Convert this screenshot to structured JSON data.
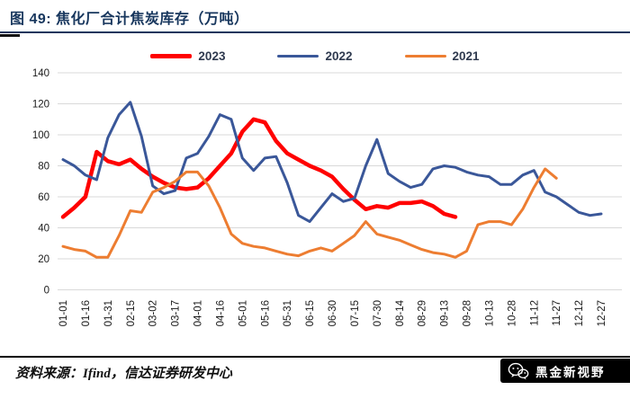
{
  "header": {
    "title": "图 49:  焦化厂合计焦炭库存（万吨）"
  },
  "legend": [
    {
      "label": "2023",
      "color": "#FF0000",
      "thick": true
    },
    {
      "label": "2022",
      "color": "#3A5799",
      "thick": false
    },
    {
      "label": "2021",
      "color": "#ED7D31",
      "thick": false
    }
  ],
  "chart_data": {
    "type": "line",
    "title": "焦化厂合计焦炭库存（万吨）",
    "ylabel": "",
    "xlabel": "",
    "ylim": [
      0,
      140
    ],
    "y_ticks": [
      0,
      20,
      40,
      60,
      80,
      100,
      120,
      140
    ],
    "grid": "horizontal",
    "legend_position": "top",
    "points_per_tick": 2,
    "x_tick_labels": [
      "01-01",
      "01-16",
      "01-31",
      "02-15",
      "03-02",
      "03-17",
      "04-01",
      "04-16",
      "05-01",
      "05-16",
      "05-31",
      "06-15",
      "06-30",
      "07-15",
      "07-30",
      "08-14",
      "08-29",
      "09-13",
      "09-28",
      "10-13",
      "10-28",
      "11-12",
      "11-27",
      "12-12",
      "12-27"
    ],
    "series": [
      {
        "name": "2023",
        "color": "#FF0000",
        "width": 4.5,
        "values": [
          47,
          53,
          60,
          89,
          83,
          81,
          84,
          78,
          73,
          69,
          66,
          65,
          66,
          72,
          80,
          88,
          102,
          110,
          108,
          96,
          88,
          84,
          80,
          77,
          73,
          65,
          58,
          52,
          54,
          53,
          56,
          56,
          57,
          54,
          49,
          47
        ]
      },
      {
        "name": "2022",
        "color": "#3A5799",
        "width": 3,
        "values": [
          84,
          80,
          74,
          71,
          98,
          113,
          121,
          99,
          67,
          62,
          64,
          85,
          88,
          99,
          113,
          110,
          85,
          77,
          85,
          86,
          69,
          48,
          44,
          53,
          62,
          57,
          59,
          80,
          97,
          75,
          70,
          66,
          68,
          78,
          80,
          79,
          76,
          74,
          73,
          68,
          68,
          74,
          77,
          63,
          60,
          55,
          50,
          48,
          49
        ]
      },
      {
        "name": "2021",
        "color": "#ED7D31",
        "width": 3,
        "values": [
          28,
          26,
          25,
          21,
          21,
          35,
          51,
          50,
          63,
          66,
          70,
          76,
          76,
          67,
          53,
          36,
          30,
          28,
          27,
          25,
          23,
          22,
          25,
          27,
          25,
          30,
          35,
          44,
          36,
          34,
          32,
          29,
          26,
          24,
          23,
          21,
          25,
          42,
          44,
          44,
          42,
          52,
          66,
          78,
          72
        ]
      }
    ]
  },
  "footer": {
    "source": "资料来源：Ifind，信达证券研发中心",
    "badge": {
      "text": "黑金新视野",
      "icon": "wechat-icon"
    }
  }
}
